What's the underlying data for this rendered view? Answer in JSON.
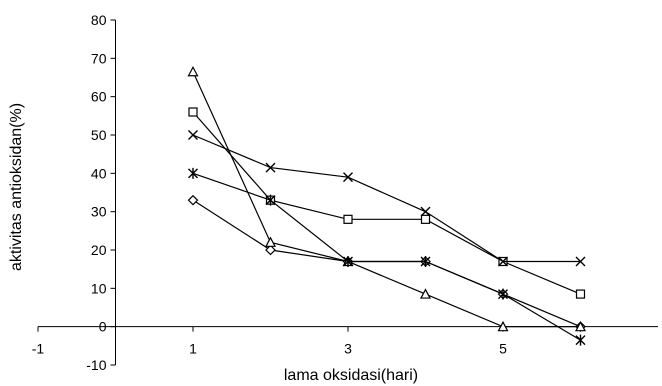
{
  "chart_data": {
    "type": "line",
    "title": "",
    "xlabel": "lama oksidasi(hari)",
    "ylabel": "aktivitas antioksidan(%)",
    "xlim": [
      -1,
      7
    ],
    "ylim": [
      -10,
      80
    ],
    "x_ticks": [
      -1,
      1,
      3,
      5
    ],
    "x_tick_labels": [
      "-1",
      "1",
      "3",
      "5"
    ],
    "y_ticks": [
      -10,
      0,
      10,
      20,
      30,
      40,
      50,
      60,
      70,
      80
    ],
    "y_tick_labels": [
      "-10",
      "0",
      "10",
      "20",
      "30",
      "40",
      "50",
      "60",
      "70",
      "80"
    ],
    "grid": false,
    "legend": "none",
    "line_color": "#000000",
    "series": [
      {
        "marker": "diamond",
        "x": [
          1,
          2,
          3,
          4,
          5,
          6
        ],
        "y": [
          33,
          20,
          17,
          17,
          8.5,
          0
        ]
      },
      {
        "marker": "square",
        "x": [
          1,
          2,
          3,
          4,
          5,
          6
        ],
        "y": [
          56,
          33,
          28,
          28,
          17,
          8.5
        ]
      },
      {
        "marker": "triangle",
        "x": [
          1,
          2,
          3,
          4,
          5,
          6
        ],
        "y": [
          66.5,
          22,
          17,
          8.5,
          0,
          0
        ]
      },
      {
        "marker": "x",
        "x": [
          1,
          2,
          3,
          4,
          5,
          6
        ],
        "y": [
          50,
          41.5,
          39,
          30,
          17,
          17
        ]
      },
      {
        "marker": "asterisk",
        "x": [
          1,
          2,
          3,
          4,
          5,
          6
        ],
        "y": [
          40,
          33,
          17,
          17,
          8.5,
          -3.5
        ]
      }
    ]
  }
}
